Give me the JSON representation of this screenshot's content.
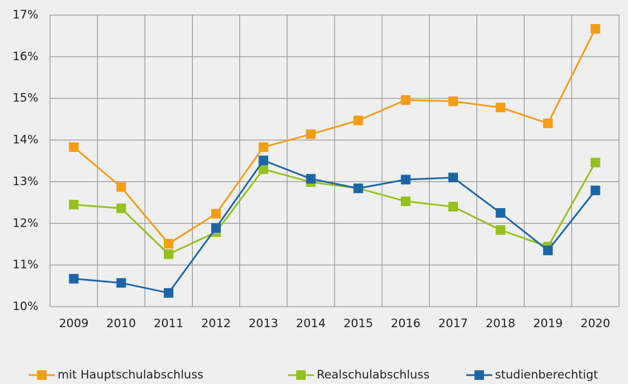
{
  "chart_data": {
    "type": "line",
    "categories": [
      "2009",
      "2010",
      "2011",
      "2012",
      "2013",
      "2014",
      "2015",
      "2016",
      "2017",
      "2018",
      "2019",
      "2020"
    ],
    "series": [
      {
        "name": "mit Hauptschulabschluss",
        "color": "#f49d17",
        "values": [
          13.83,
          12.87,
          11.51,
          12.23,
          13.83,
          14.14,
          14.47,
          14.96,
          14.93,
          14.78,
          14.4,
          16.67
        ]
      },
      {
        "name": "Realschulabschluss",
        "color": "#95c11f",
        "values": [
          12.45,
          12.36,
          11.26,
          11.79,
          13.3,
          12.99,
          12.84,
          12.53,
          12.4,
          11.84,
          11.44,
          13.46
        ]
      },
      {
        "name": "studienberechtigt",
        "color": "#1c66a8",
        "values": [
          10.67,
          10.57,
          10.33,
          11.89,
          13.51,
          13.07,
          12.84,
          13.05,
          13.1,
          12.25,
          11.35,
          12.79
        ]
      }
    ],
    "ylim": [
      10,
      17
    ],
    "yticks": [
      {
        "value": 10,
        "label": "10%"
      },
      {
        "value": 11,
        "label": "11%"
      },
      {
        "value": 12,
        "label": "12%"
      },
      {
        "value": 13,
        "label": "13%"
      },
      {
        "value": 14,
        "label": "14%"
      },
      {
        "value": 15,
        "label": "15%"
      },
      {
        "value": 16,
        "label": "16%"
      },
      {
        "value": 17,
        "label": "17%"
      }
    ],
    "grid": true,
    "legend": "bottom"
  }
}
